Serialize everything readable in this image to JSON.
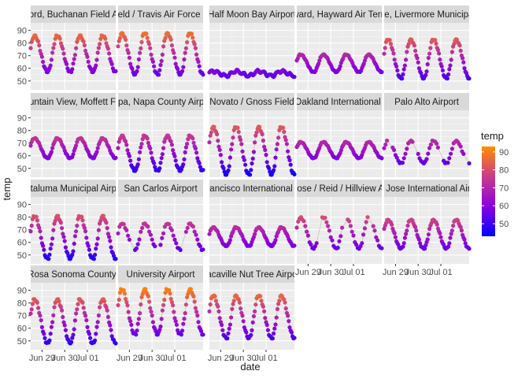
{
  "chart_data": {
    "type": "scatter",
    "title": "",
    "xlabel": "date",
    "ylabel": "temp",
    "x_ticks": [
      "Jun 29",
      "Jun 30",
      "Jul 01"
    ],
    "y_ticks": [
      50,
      60,
      70,
      80,
      90
    ],
    "ylim": [
      43,
      96
    ],
    "x_start": "2020-06-28 12:00",
    "x_end": "2020-07-02 06:00",
    "grid": true,
    "legend": {
      "title": "temp",
      "placement": "right",
      "ticks": [
        50,
        60,
        70,
        80,
        90
      ],
      "range": [
        43,
        93
      ],
      "colors": {
        "low": "#0000ff",
        "high": "#ff8c00"
      }
    },
    "panels": [
      {
        "label": "Concord, Buchanan Field Airport",
        "shape": "normal",
        "min": 57,
        "max": 86
      },
      {
        "label": "Fairfield / Travis Air Force Base",
        "shape": "normal",
        "min": 55,
        "max": 88
      },
      {
        "label": "Half Moon Bay Airport",
        "shape": "flat",
        "min": 51,
        "max": 60
      },
      {
        "label": "Hayward, Hayward Air Terminal",
        "shape": "normal",
        "min": 57,
        "max": 71
      },
      {
        "label": "Livermore, Livermore Municipal Airport",
        "shape": "normal",
        "min": 52,
        "max": 83
      },
      {
        "label": "Mountain View, Moffett Field",
        "shape": "normal",
        "min": 58,
        "max": 74
      },
      {
        "label": "Napa, Napa County Airport",
        "shape": "normal",
        "min": 48,
        "max": 76
      },
      {
        "label": "Novato / Gnoss Field",
        "shape": "normal",
        "min": 45,
        "max": 83
      },
      {
        "label": "Metro Oakland International Airport",
        "shape": "normal",
        "min": 58,
        "max": 71
      },
      {
        "label": "Palo Alto Airport",
        "shape": "gappy",
        "min": 54,
        "max": 72
      },
      {
        "label": "Petaluma Municipal Airport",
        "shape": "normal",
        "min": 47,
        "max": 81
      },
      {
        "label": "San Carlos Airport",
        "shape": "gappy",
        "min": 54,
        "max": 75
      },
      {
        "label": "San Francisco International Airport",
        "shape": "normal",
        "min": 57,
        "max": 72
      },
      {
        "label": "San Jose / Reid / Hillview Airport",
        "shape": "gappy",
        "min": 55,
        "max": 80
      },
      {
        "label": "San Jose International Airport",
        "shape": "normal",
        "min": 55,
        "max": 78
      },
      {
        "label": "Santa Rosa Sonoma County Airport",
        "shape": "normal",
        "min": 48,
        "max": 83
      },
      {
        "label": "University Airport",
        "shape": "normal",
        "min": 55,
        "max": 91
      },
      {
        "label": "Vacaville Nut Tree Airport",
        "shape": "normal",
        "min": 52,
        "max": 86
      }
    ]
  }
}
